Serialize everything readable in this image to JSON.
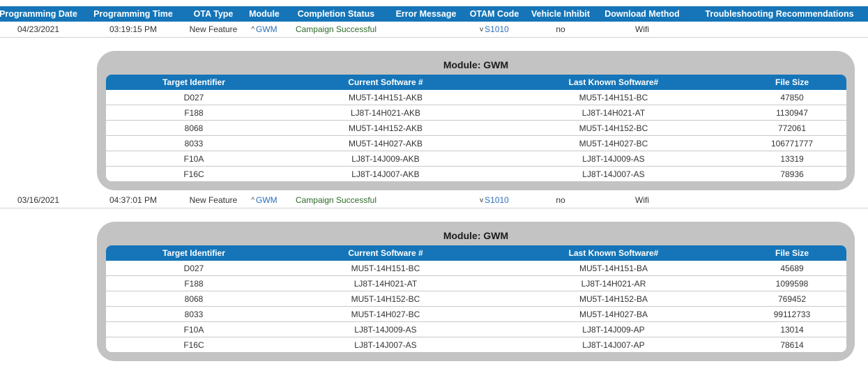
{
  "header": {
    "programming_date": "Programming Date",
    "programming_time": "Programming Time",
    "ota_type": "OTA Type",
    "module": "Module",
    "completion_status": "Completion Status",
    "error_message": "Error Message",
    "otam_code": "OTAM Code",
    "vehicle_inhibit": "Vehicle Inhibit",
    "download_method": "Download Method",
    "troubleshooting": "Troubleshooting Recommendations"
  },
  "records": [
    {
      "date": "04/23/2021",
      "time": "03:19:15 PM",
      "ota_type": "New Feature",
      "module_chevron": "^",
      "module": "GWM",
      "status": "Campaign Successful",
      "error": "",
      "otam_chevron": "v",
      "otam": "S1010",
      "inhibit": "no",
      "download": "Wifi",
      "troubleshooting": "",
      "detail": {
        "title": "Module: GWM",
        "columns": [
          "Target Identifier",
          "Current Software #",
          "Last Known Software#",
          "File Size"
        ],
        "rows": [
          [
            "D027",
            "MU5T-14H151-AKB",
            "MU5T-14H151-BC",
            "47850"
          ],
          [
            "F188",
            "LJ8T-14H021-AKB",
            "LJ8T-14H021-AT",
            "1130947"
          ],
          [
            "8068",
            "MU5T-14H152-AKB",
            "MU5T-14H152-BC",
            "772061"
          ],
          [
            "8033",
            "MU5T-14H027-AKB",
            "MU5T-14H027-BC",
            "106771777"
          ],
          [
            "F10A",
            "LJ8T-14J009-AKB",
            "LJ8T-14J009-AS",
            "13319"
          ],
          [
            "F16C",
            "LJ8T-14J007-AKB",
            "LJ8T-14J007-AS",
            "78936"
          ]
        ]
      }
    },
    {
      "date": "03/16/2021",
      "time": "04:37:01 PM",
      "ota_type": "New Feature",
      "module_chevron": "^",
      "module": "GWM",
      "status": "Campaign Successful",
      "error": "",
      "otam_chevron": "v",
      "otam": "S1010",
      "inhibit": "no",
      "download": "Wifi",
      "troubleshooting": "",
      "detail": {
        "title": "Module: GWM",
        "columns": [
          "Target Identifier",
          "Current Software #",
          "Last Known Software#",
          "File Size"
        ],
        "rows": [
          [
            "D027",
            "MU5T-14H151-BC",
            "MU5T-14H151-BA",
            "45689"
          ],
          [
            "F188",
            "LJ8T-14H021-AT",
            "LJ8T-14H021-AR",
            "1099598"
          ],
          [
            "8068",
            "MU5T-14H152-BC",
            "MU5T-14H152-BA",
            "769452"
          ],
          [
            "8033",
            "MU5T-14H027-BC",
            "MU5T-14H027-BA",
            "99112733"
          ],
          [
            "F10A",
            "LJ8T-14J009-AS",
            "LJ8T-14J009-AP",
            "13014"
          ],
          [
            "F16C",
            "LJ8T-14J007-AS",
            "LJ8T-14J007-AP",
            "78614"
          ]
        ]
      }
    }
  ]
}
